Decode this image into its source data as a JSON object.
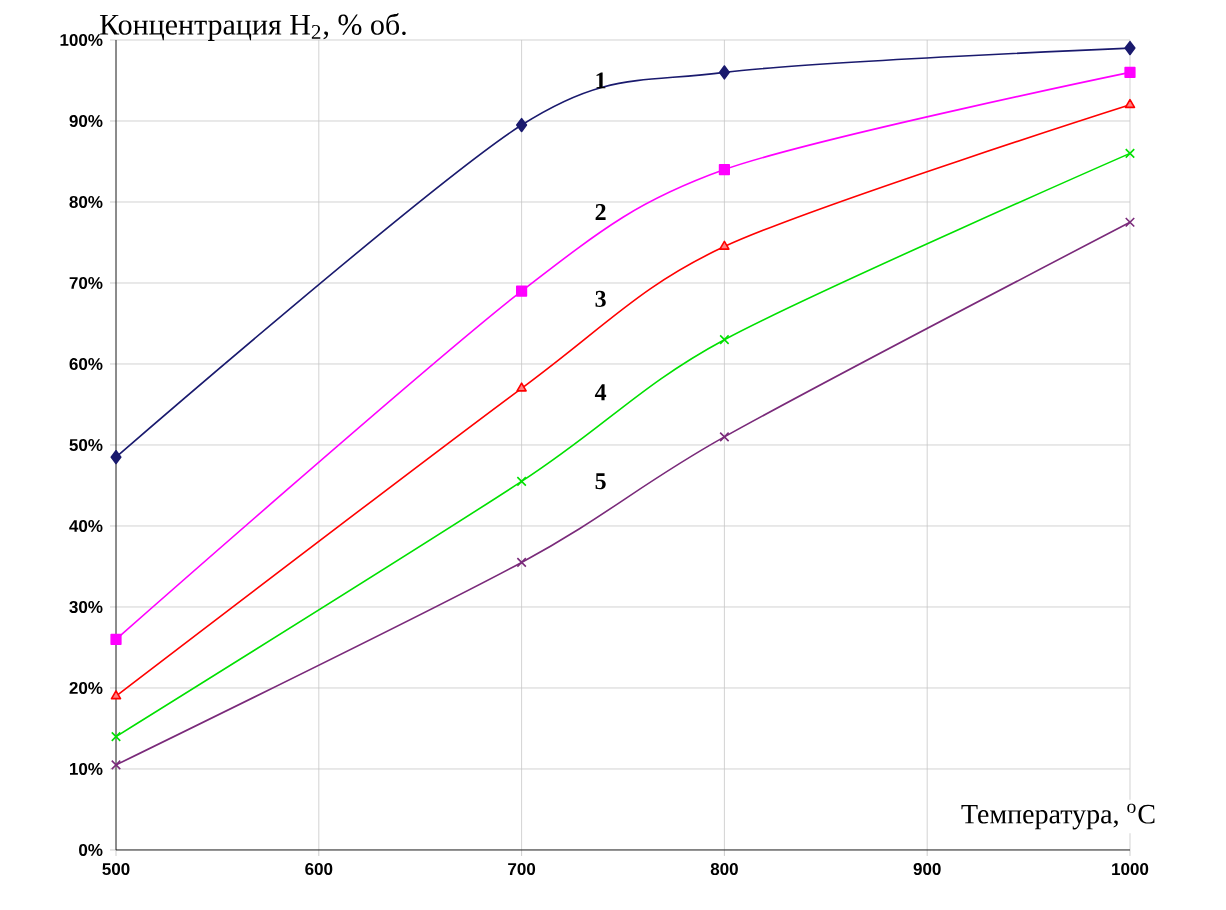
{
  "chart_data": {
    "type": "line",
    "title": "Концентрация H$_{2}$, % об.",
    "xlabel": "Температура, $^{o}$C",
    "xlim": [
      500,
      1000
    ],
    "xticks": [
      500,
      600,
      700,
      800,
      900,
      1000
    ],
    "ylim": [
      0,
      100
    ],
    "yticks": [
      {
        "value": 0,
        "label": "0%"
      },
      {
        "value": 10,
        "label": "10%"
      },
      {
        "value": 20,
        "label": "20%"
      },
      {
        "value": 30,
        "label": "30%"
      },
      {
        "value": 40,
        "label": "40%"
      },
      {
        "value": 50,
        "label": "50%"
      },
      {
        "value": 60,
        "label": "60%"
      },
      {
        "value": 70,
        "label": "70%"
      },
      {
        "value": 80,
        "label": "80%"
      },
      {
        "value": 90,
        "label": "90%"
      },
      {
        "value": 100,
        "label": "100%"
      }
    ],
    "grid": true,
    "x": [
      500,
      700,
      800,
      1000
    ],
    "series": [
      {
        "name": "1",
        "color": "#1a1a6e",
        "marker": "diamond",
        "values": [
          48.5,
          89.5,
          96,
          99
        ]
      },
      {
        "name": "2",
        "color": "#ff00ff",
        "marker": "square",
        "values": [
          26,
          69,
          84,
          96
        ]
      },
      {
        "name": "3",
        "color": "#ff0000",
        "marker": "triangle",
        "values": [
          19,
          57,
          74.5,
          92
        ]
      },
      {
        "name": "4",
        "color": "#00e000",
        "marker": "cross",
        "values": [
          14,
          45.5,
          63,
          86
        ]
      },
      {
        "name": "5",
        "color": "#7a2a7a",
        "marker": "cross",
        "values": [
          10.5,
          35.5,
          51,
          77.5
        ]
      }
    ]
  }
}
